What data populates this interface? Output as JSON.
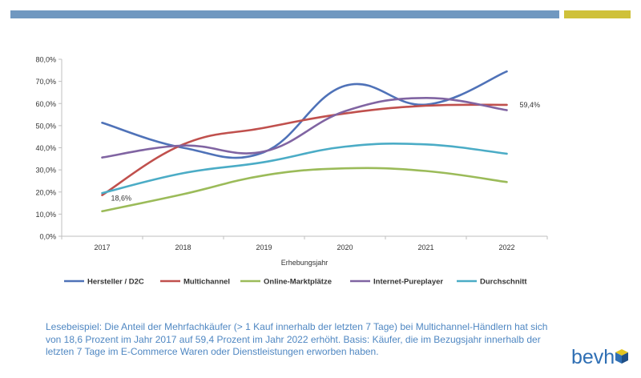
{
  "colors": {
    "blue_bar": "#7098c0",
    "yellow_bar": "#cfc13a",
    "caption": "#4f87c2",
    "logo": "#2f6fb4",
    "logo_accent": "#e3c520"
  },
  "chart_data": {
    "type": "line",
    "categories": [
      "2017",
      "2018",
      "2019",
      "2020",
      "2021",
      "2022"
    ],
    "xlabel": "Erhebungsjahr",
    "ylabel": "",
    "ylim": [
      0,
      80
    ],
    "yticks": [
      "0,0%",
      "10,0%",
      "20,0%",
      "30,0%",
      "40,0%",
      "50,0%",
      "60,0%",
      "70,0%",
      "80,0%"
    ],
    "grid": false,
    "legend_position": "bottom",
    "series": [
      {
        "name": "Hersteller / D2C",
        "color": "#4f72b8",
        "values": [
          51.3,
          40.0,
          38.0,
          68.0,
          59.5,
          74.5
        ]
      },
      {
        "name": "Multichannel",
        "color": "#c0504d",
        "values": [
          18.6,
          41.5,
          49.0,
          55.5,
          59.0,
          59.4
        ]
      },
      {
        "name": "Online-Marktplätze",
        "color": "#9bbb59",
        "values": [
          11.3,
          19.0,
          27.5,
          30.7,
          29.5,
          24.5
        ]
      },
      {
        "name": "Internet-Pureplayer",
        "color": "#8064a2",
        "values": [
          35.6,
          41.0,
          38.3,
          56.5,
          62.5,
          57.0
        ]
      },
      {
        "name": "Durchschnitt",
        "color": "#4bacc6",
        "values": [
          19.5,
          28.5,
          33.5,
          40.5,
          41.5,
          37.3
        ]
      }
    ],
    "annotations": [
      {
        "text": "18,6%",
        "series": "Multichannel",
        "category": "2017",
        "value": 18.6
      },
      {
        "text": "59,4%",
        "series": "Multichannel",
        "category": "2022",
        "value": 59.4
      }
    ]
  },
  "caption": "Lesebeispiel: Die Anteil der Mehrfachkäufer (> 1 Kauf innerhalb der letzten 7 Tage) bei Multichannel-Händlern hat sich von 18,6 Prozent im Jahr 2017 auf 59,4 Prozent im Jahr 2022 erhöht. Basis: Käufer, die im Bezugsjahr innerhalb der letzten 7 Tage im E-Commerce Waren oder Dienstleistungen erworben haben.",
  "logo": {
    "text": "bevh"
  }
}
